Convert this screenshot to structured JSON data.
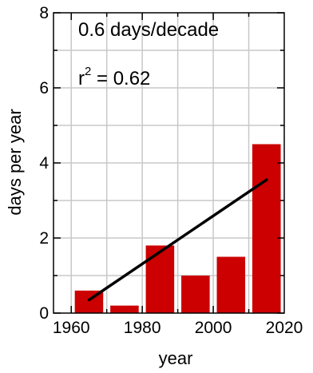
{
  "chart_data": {
    "type": "bar",
    "title": "",
    "xlabel": "year",
    "ylabel": "days per year",
    "xlim": [
      1955,
      2020
    ],
    "ylim": [
      0,
      8
    ],
    "x": [
      1965,
      1975,
      1985,
      1995,
      2005,
      2015
    ],
    "values": [
      0.6,
      0.2,
      1.8,
      1.0,
      1.5,
      4.5
    ],
    "bar_width_years": 8,
    "xticks": [
      1960,
      1980,
      2000,
      2020
    ],
    "yticks": [
      0,
      2,
      4,
      6,
      8
    ],
    "xtick_labels": [
      "1960",
      "1980",
      "2000",
      "2020"
    ],
    "ytick_labels": [
      "0",
      "2",
      "4",
      "6",
      "8"
    ],
    "trendline": {
      "x": [
        1965,
        2015
      ],
      "y": [
        0.35,
        3.55
      ]
    },
    "annotations": {
      "rate": "0.6 days/decade",
      "r2_prefix": "r",
      "r2_exponent": "2",
      "r2_value": " = 0.62"
    },
    "grid": true,
    "legend": "none",
    "colors": {
      "bar": "#cc0000",
      "trendline": "#000000",
      "grid": "#c8c8c8",
      "axis": "#000000"
    }
  }
}
